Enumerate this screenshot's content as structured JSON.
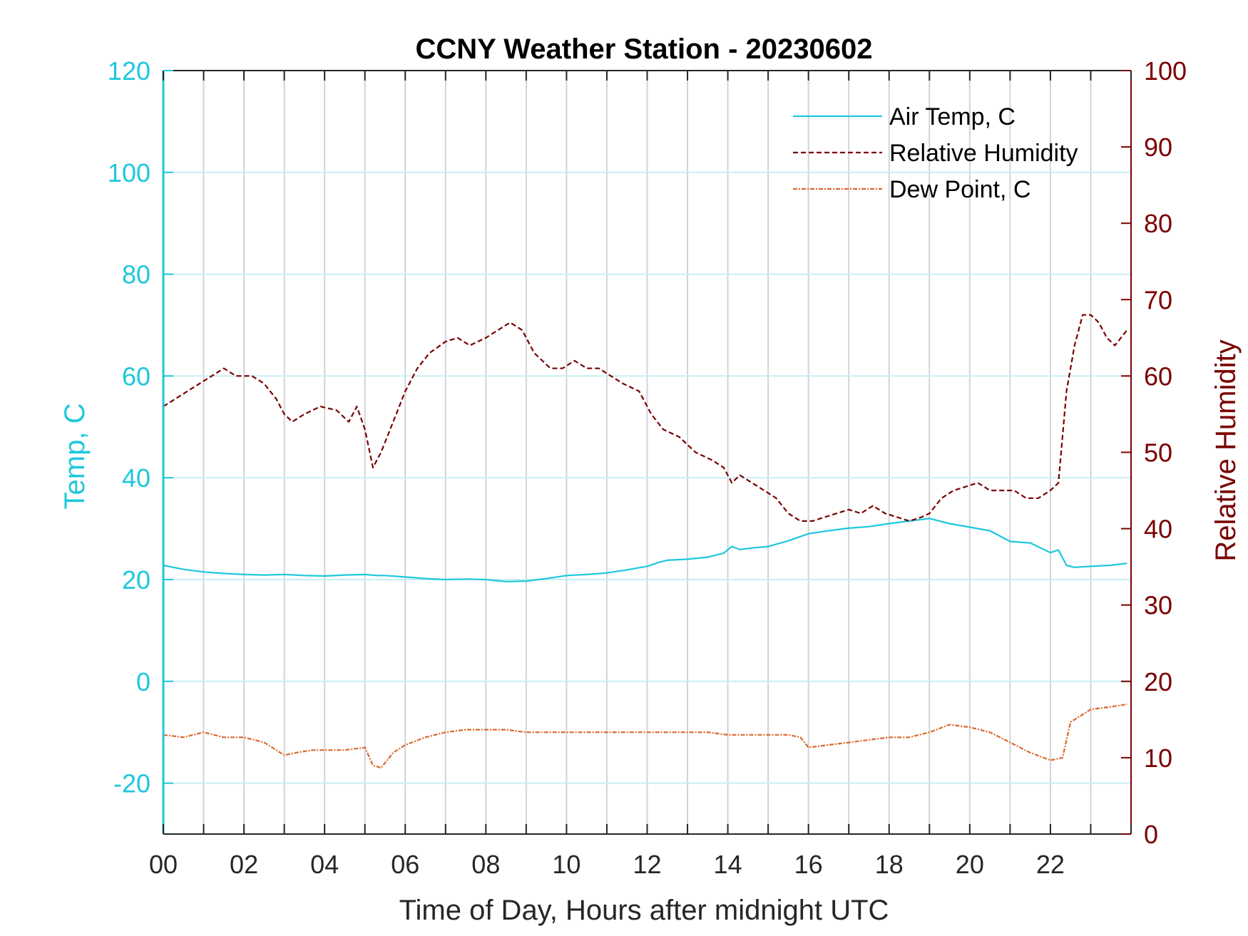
{
  "chart_data": {
    "type": "line",
    "title": "CCNY Weather Station - 20230602",
    "xlabel": "Time of Day, Hours after midnight UTC",
    "ylabel_left": "Temp, C",
    "ylabel_right": "Relative Humidity",
    "xlim": [
      0,
      24
    ],
    "ylim_left": [
      -30,
      120
    ],
    "ylim_right": [
      0,
      100
    ],
    "x_ticks": [
      0,
      2,
      4,
      6,
      8,
      10,
      12,
      14,
      16,
      18,
      20,
      22
    ],
    "x_tick_labels": [
      "00",
      "02",
      "04",
      "06",
      "08",
      "10",
      "12",
      "14",
      "16",
      "18",
      "20",
      "22"
    ],
    "y_left_ticks": [
      -20,
      0,
      20,
      40,
      60,
      80,
      100,
      120
    ],
    "y_right_ticks": [
      0,
      10,
      20,
      30,
      40,
      50,
      60,
      70,
      80,
      90,
      100
    ],
    "grid": true,
    "legend_position": "top-right",
    "colors": {
      "temp": "#1ec8dc",
      "humidity": "#7a0000",
      "dewpoint": "#d9682a",
      "grid_vertical": "#d0d4d8",
      "grid_horizontal": "#c8eef3",
      "axis_left": "#1ec8dc",
      "axis_right": "#7a0000"
    },
    "series": [
      {
        "name": "Air Temp, C",
        "axis": "left",
        "style": "solid",
        "x": [
          0,
          0.5,
          1,
          1.5,
          2,
          2.5,
          3,
          3.5,
          4,
          4.5,
          5,
          5.3,
          5.5,
          6,
          6.5,
          7,
          7.5,
          8,
          8.5,
          9,
          9.5,
          10,
          10.5,
          11,
          11.5,
          12,
          12.3,
          12.5,
          13,
          13.5,
          13.9,
          14.1,
          14.3,
          14.6,
          15,
          15.5,
          16,
          16.5,
          17,
          17.5,
          18,
          18.5,
          19,
          19.5,
          20,
          20.5,
          21,
          21.5,
          22,
          22.2,
          22.4,
          22.6,
          23,
          23.5,
          23.9
        ],
        "y": [
          22.8,
          22,
          21.5,
          21.2,
          21,
          20.9,
          21,
          20.8,
          20.7,
          20.9,
          21,
          20.8,
          20.8,
          20.5,
          20.2,
          20,
          20.1,
          20,
          19.6,
          19.7,
          20.2,
          20.8,
          21,
          21.3,
          21.9,
          22.6,
          23.4,
          23.8,
          24,
          24.4,
          25.2,
          26.5,
          25.9,
          26.2,
          26.5,
          27.6,
          29,
          29.6,
          30.1,
          30.4,
          31,
          31.5,
          32,
          31,
          30.3,
          29.6,
          27.5,
          27.2,
          25.3,
          25.8,
          22.8,
          22.4,
          22.6,
          22.8,
          23.2
        ]
      },
      {
        "name": "Relative Humidity",
        "axis": "right",
        "style": "dashed",
        "x": [
          0,
          0.3,
          0.6,
          0.9,
          1.2,
          1.5,
          1.8,
          2.2,
          2.5,
          2.8,
          3.0,
          3.2,
          3.5,
          3.9,
          4.3,
          4.6,
          4.8,
          5.0,
          5.2,
          5.4,
          5.7,
          6.0,
          6.3,
          6.6,
          7.0,
          7.3,
          7.6,
          8.0,
          8.3,
          8.6,
          8.9,
          9.2,
          9.6,
          9.9,
          10.2,
          10.5,
          10.8,
          11.1,
          11.4,
          11.8,
          12.1,
          12.4,
          12.8,
          13.2,
          13.6,
          13.9,
          14.1,
          14.3,
          14.6,
          14.9,
          15.2,
          15.5,
          15.8,
          16.1,
          16.4,
          16.7,
          17.0,
          17.3,
          17.6,
          17.9,
          18.2,
          18.5,
          18.8,
          19.0,
          19.3,
          19.6,
          19.9,
          20.2,
          20.5,
          20.8,
          21.1,
          21.4,
          21.7,
          22.0,
          22.2,
          22.4,
          22.6,
          22.8,
          23.0,
          23.2,
          23.4,
          23.6,
          23.9
        ],
        "y": [
          56,
          57,
          58,
          59,
          60,
          61,
          60,
          60,
          59,
          57,
          55,
          54,
          55,
          56,
          55.5,
          54,
          56,
          53,
          48,
          50,
          54,
          58,
          61,
          63,
          64.5,
          65,
          64,
          65,
          66,
          67,
          66,
          63,
          61,
          61,
          62,
          61,
          61,
          60,
          59,
          58,
          55,
          53,
          52,
          50,
          49,
          48,
          46,
          47,
          46,
          45,
          44,
          42,
          41,
          41,
          41.5,
          42,
          42.5,
          42,
          43,
          42,
          41.5,
          41,
          41.5,
          42,
          44,
          45,
          45.5,
          46,
          45,
          45,
          45,
          44,
          44,
          45,
          46,
          58,
          64,
          68,
          68,
          67,
          65,
          64,
          66
        ]
      },
      {
        "name": "Dew Point, C",
        "axis": "left",
        "style": "dash-dot",
        "x": [
          0,
          0.5,
          1,
          1.5,
          2,
          2.5,
          3,
          3.3,
          3.7,
          4,
          4.5,
          5,
          5.2,
          5.4,
          5.7,
          6,
          6.5,
          7,
          7.5,
          8,
          8.5,
          9,
          9.5,
          10,
          10.5,
          11,
          11.5,
          12,
          12.5,
          13,
          13.5,
          14,
          14.5,
          15,
          15.5,
          15.8,
          16,
          16.5,
          17,
          17.5,
          18,
          18.5,
          19,
          19.5,
          20,
          20.5,
          21,
          21.5,
          22,
          22.3,
          22.5,
          23,
          23.5,
          23.9
        ],
        "y": [
          -10.5,
          -11,
          -10,
          -11,
          -11,
          -12,
          -14.5,
          -14,
          -13.5,
          -13.5,
          -13.5,
          -13,
          -16.5,
          -17,
          -14,
          -12.5,
          -11,
          -10,
          -9.5,
          -9.5,
          -9.5,
          -10,
          -10,
          -10,
          -10,
          -10,
          -10,
          -10,
          -10,
          -10,
          -10,
          -10.5,
          -10.5,
          -10.5,
          -10.5,
          -11,
          -13,
          -12.5,
          -12,
          -11.5,
          -11,
          -11,
          -10,
          -8.5,
          -9,
          -10,
          -12,
          -14,
          -15.5,
          -15,
          -8,
          -5.5,
          -5,
          -4.5
        ]
      }
    ]
  }
}
